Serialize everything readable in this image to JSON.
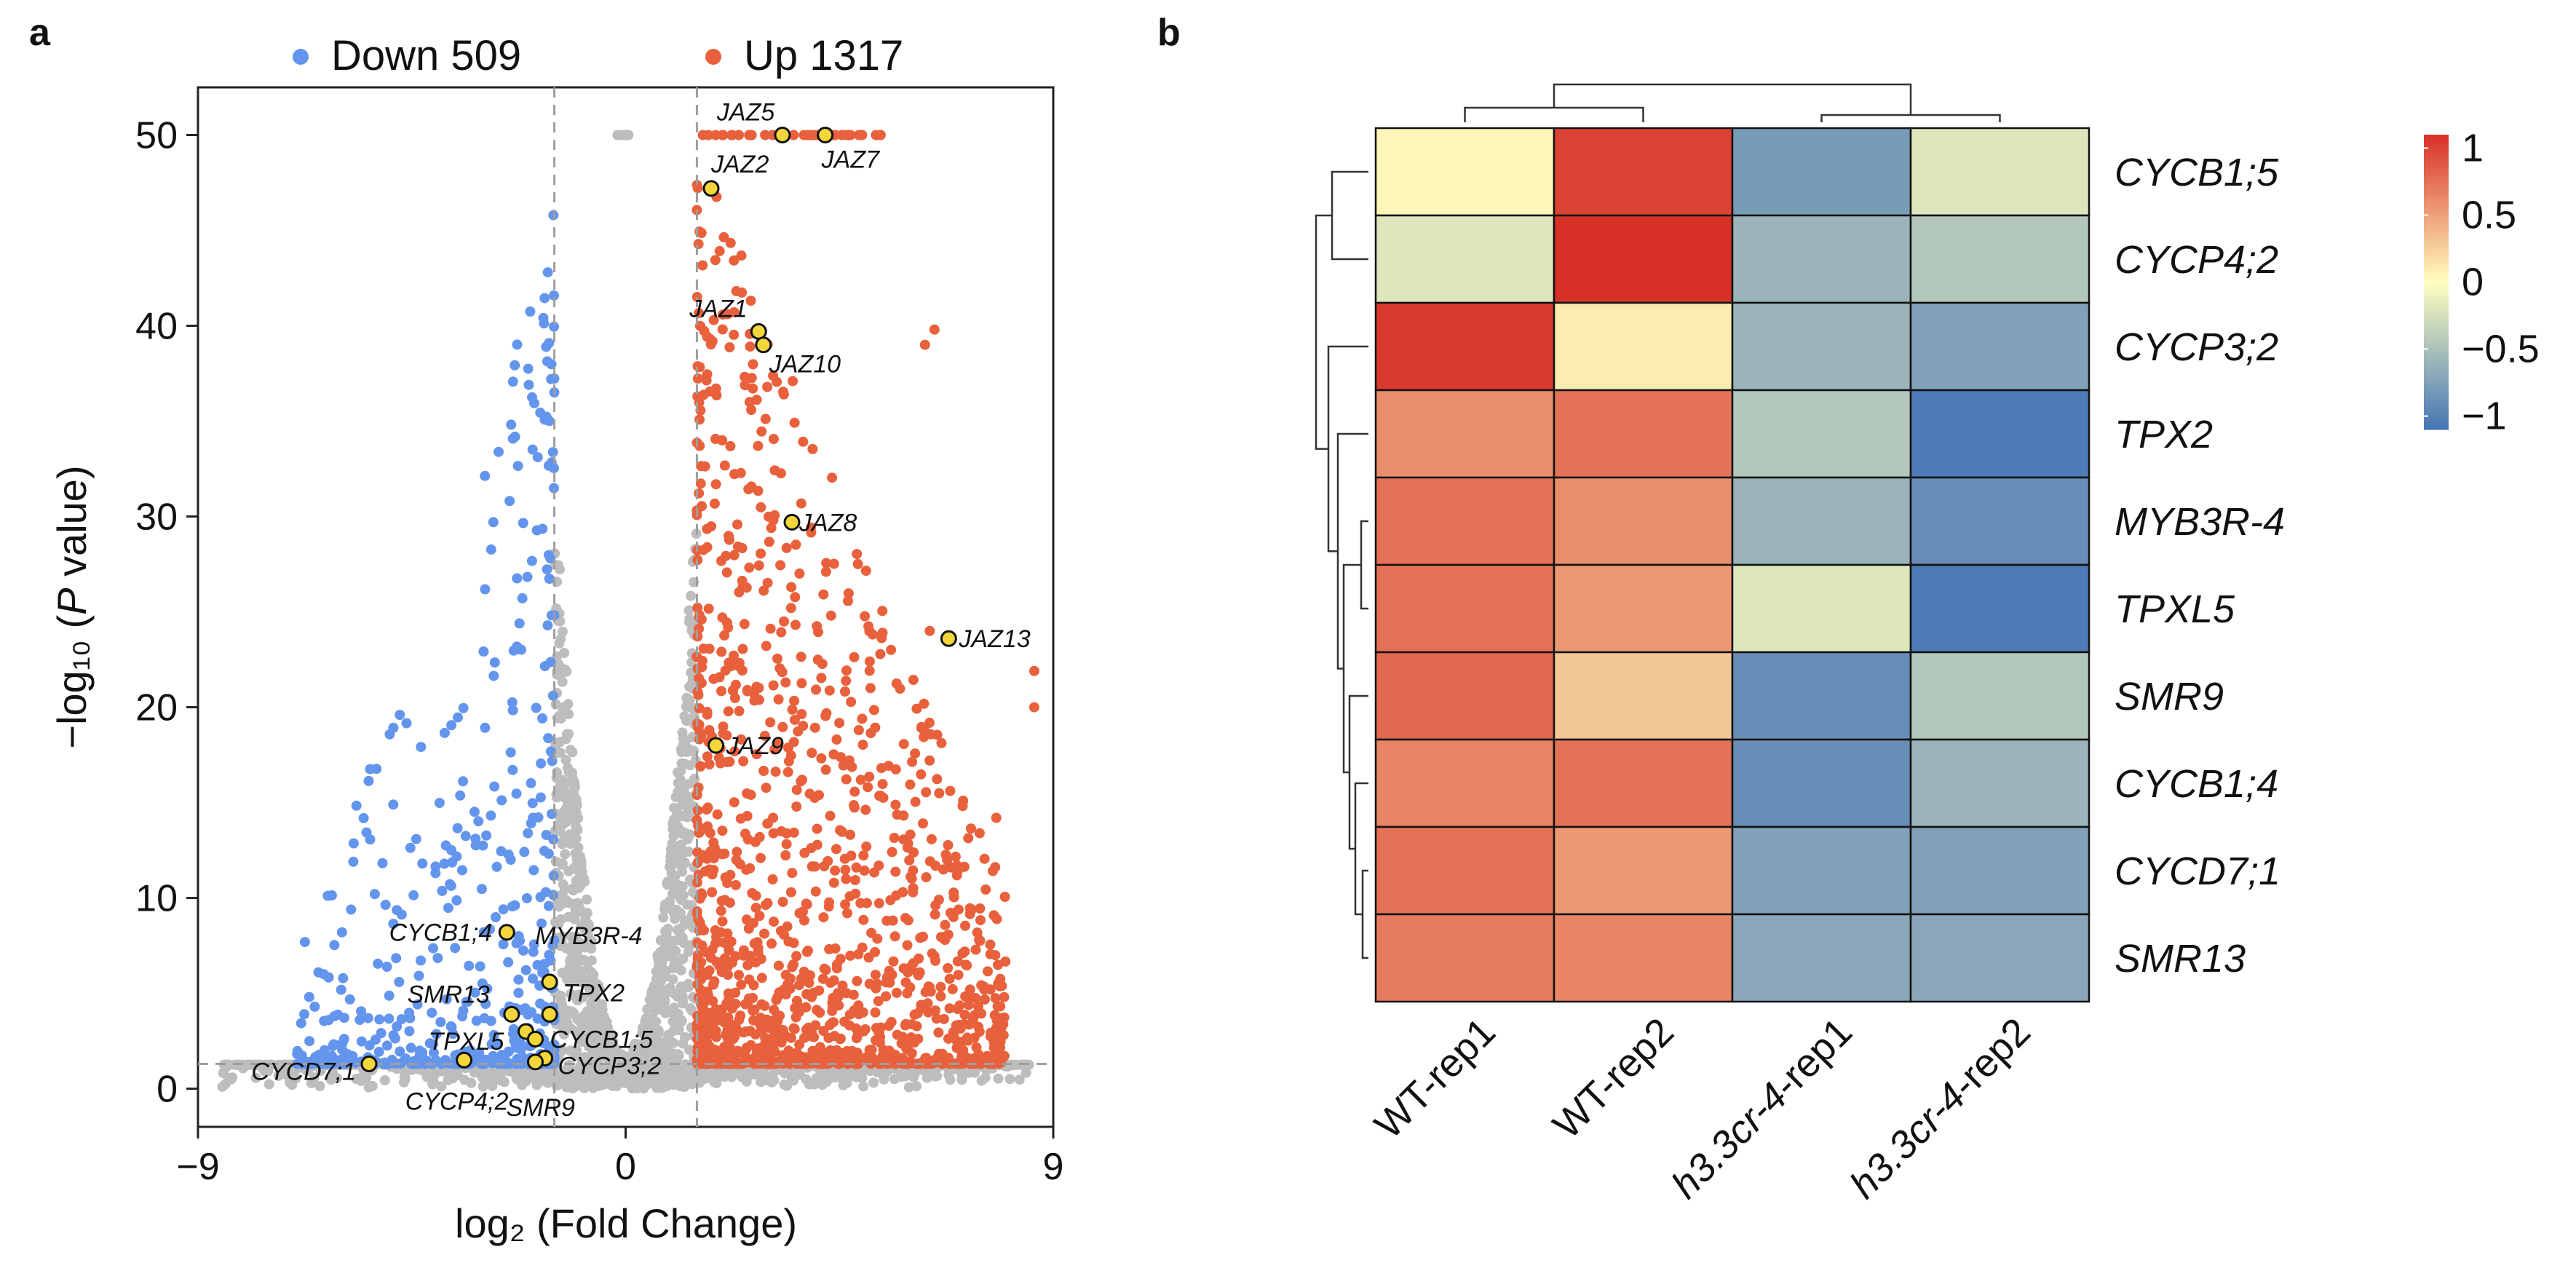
{
  "colors": {
    "down": "#6495ED",
    "up": "#E8613C",
    "ns": "#BDBDBD",
    "highlight_fill": "#F2D63A",
    "heat_low": "#4575B4",
    "heat_mid": "#FFFFBF",
    "heat_high": "#D73027"
  },
  "panel_a": {
    "letter": "a",
    "legend": [
      {
        "label": "Down 509",
        "color": "#6495ED"
      },
      {
        "label": "Up 1317",
        "color": "#E8613C"
      }
    ],
    "xlabel": "log₂ (Fold Change)",
    "ylabel_parts": [
      "−log₁₀ (",
      "P",
      " value)"
    ]
  },
  "panel_b": {
    "letter": "b"
  },
  "chart_data": [
    {
      "type": "scatter",
      "xlim": [
        -9.0,
        9.0
      ],
      "ylim": [
        -2.0,
        52.5
      ],
      "xticks": [
        -9,
        0,
        9
      ],
      "yticks": [
        0,
        10,
        20,
        30,
        40,
        50
      ],
      "xtick_labels": [
        "−9",
        "0",
        "9"
      ],
      "ytick_labels": [
        "0",
        "10",
        "20",
        "30",
        "40",
        "50"
      ],
      "thresholds": {
        "x": [
          -1.5,
          1.5
        ],
        "y": 1.3
      },
      "groups": [
        {
          "name": "Down",
          "count": 509
        },
        {
          "name": "Up",
          "count": 1317
        }
      ],
      "highlighted": [
        {
          "gene": "JAZ5",
          "x": 3.3,
          "y": 50.0
        },
        {
          "gene": "JAZ7",
          "x": 4.2,
          "y": 50.0
        },
        {
          "gene": "JAZ2",
          "x": 1.8,
          "y": 47.2
        },
        {
          "gene": "JAZ1",
          "x": 2.8,
          "y": 39.7
        },
        {
          "gene": "JAZ10",
          "x": 2.9,
          "y": 39.0
        },
        {
          "gene": "JAZ8",
          "x": 3.5,
          "y": 29.7
        },
        {
          "gene": "JAZ13",
          "x": 6.8,
          "y": 23.6
        },
        {
          "gene": "JAZ9",
          "x": 1.9,
          "y": 18.0
        },
        {
          "gene": "CYCB1;4",
          "x": -2.5,
          "y": 8.2
        },
        {
          "gene": "MYB3R-4",
          "x": -1.6,
          "y": 5.6
        },
        {
          "gene": "SMR13",
          "x": -2.4,
          "y": 3.9
        },
        {
          "gene": "TPX2",
          "x": -1.6,
          "y": 3.9
        },
        {
          "gene": "TPXL5",
          "x": -2.1,
          "y": 3.0
        },
        {
          "gene": "CYCB1;5",
          "x": -1.9,
          "y": 2.6
        },
        {
          "gene": "CYCP3;2",
          "x": -1.7,
          "y": 1.6
        },
        {
          "gene": "CYCD7;1",
          "x": -5.4,
          "y": 1.3
        },
        {
          "gene": "CYCP4;2",
          "x": -3.4,
          "y": 1.5
        },
        {
          "gene": "SMR9",
          "x": -1.9,
          "y": 1.4
        }
      ]
    },
    {
      "type": "heatmap",
      "rows": [
        "CYCB1;5",
        "CYCP4;2",
        "CYCP3;2",
        "TPX2",
        "MYB3R-4",
        "TPXL5",
        "SMR9",
        "CYCB1;4",
        "CYCD7;1",
        "SMR13"
      ],
      "columns": [
        "WT-rep1",
        "WT-rep2",
        "h3.3cr-4-rep1",
        "h3.3cr-4-rep2"
      ],
      "values": [
        [
          0.05,
          1.0,
          -0.8,
          -0.2
        ],
        [
          -0.2,
          1.1,
          -0.6,
          -0.45
        ],
        [
          1.05,
          0.1,
          -0.6,
          -0.75
        ],
        [
          0.6,
          0.75,
          -0.45,
          -1.05
        ],
        [
          0.75,
          0.6,
          -0.6,
          -0.9
        ],
        [
          0.75,
          0.55,
          -0.2,
          -1.05
        ],
        [
          0.8,
          0.3,
          -0.9,
          -0.45
        ],
        [
          0.65,
          0.75,
          -0.9,
          -0.6
        ],
        [
          0.75,
          0.55,
          -0.75,
          -0.75
        ],
        [
          0.7,
          0.65,
          -0.7,
          -0.7
        ]
      ],
      "colorbar": {
        "min": -1.1,
        "max": 1.1,
        "ticks": [
          1,
          0.5,
          0,
          -0.5,
          -1
        ],
        "tick_labels": [
          "1",
          "0.5",
          "0",
          "−0.5",
          "−1"
        ]
      },
      "dendrogram": {
        "rows": true,
        "columns": true
      }
    }
  ]
}
